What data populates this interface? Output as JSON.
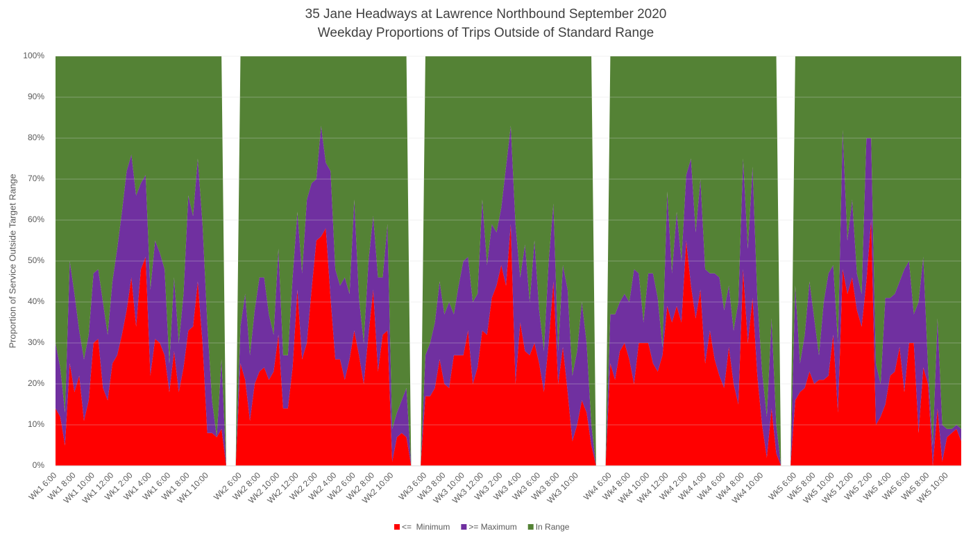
{
  "chart_data": {
    "type": "stacked_area",
    "title": "35 Jane Headways at Lawrence Northbound September 2020",
    "subtitle": "Weekday Proportions of Trips Outside of Standard Range",
    "y_label": "Proportion of Service Outside Target Range",
    "ylim": [
      0,
      100
    ],
    "yticks": [
      {
        "value": 0,
        "label": "0%"
      },
      {
        "value": 10,
        "label": "10%"
      },
      {
        "value": 20,
        "label": "20%"
      },
      {
        "value": 30,
        "label": "30%"
      },
      {
        "value": 40,
        "label": "40%"
      },
      {
        "value": 50,
        "label": "50%"
      },
      {
        "value": 60,
        "label": "60%"
      },
      {
        "value": 70,
        "label": "70%"
      },
      {
        "value": 80,
        "label": "80%"
      },
      {
        "value": 90,
        "label": "90%"
      },
      {
        "value": 100,
        "label": "100%"
      }
    ],
    "grid": true,
    "legend": "bottom",
    "categories": [
      "Wk1 6:00",
      null,
      null,
      null,
      "Wk1 8:00",
      null,
      null,
      null,
      "Wk1 10:00",
      null,
      null,
      null,
      "Wk1 12:00",
      null,
      null,
      null,
      "Wk1 2:00",
      null,
      null,
      null,
      "Wk1 4:00",
      null,
      null,
      null,
      "Wk1 6:00",
      null,
      null,
      null,
      "Wk1 8:00",
      null,
      null,
      null,
      "Wk1 10:00",
      null,
      null,
      null,
      null,
      null,
      null,
      "Wk2 6:00",
      null,
      null,
      null,
      "Wk2 8:00",
      null,
      null,
      null,
      "Wk2 10:00",
      null,
      null,
      null,
      "Wk2 12:00",
      null,
      null,
      null,
      "Wk2 2:00",
      null,
      null,
      null,
      "Wk2 4:00",
      null,
      null,
      null,
      "Wk2 6:00",
      null,
      null,
      null,
      "Wk2 8:00",
      null,
      null,
      null,
      "Wk2 10:00",
      null,
      null,
      null,
      null,
      null,
      null,
      "Wk3 6:00",
      null,
      null,
      null,
      "Wk3 8:00",
      null,
      null,
      null,
      "Wk3 10:00",
      null,
      null,
      null,
      "Wk3 12:00",
      null,
      null,
      null,
      "Wk3 2:00",
      null,
      null,
      null,
      "Wk3 4:00",
      null,
      null,
      null,
      "Wk3 6:00",
      null,
      null,
      null,
      "Wk3 8:00",
      null,
      null,
      null,
      "Wk3 10:00",
      null,
      null,
      null,
      null,
      null,
      null,
      "Wk4 6:00",
      null,
      null,
      null,
      "Wk4 8:00",
      null,
      null,
      null,
      "Wk4 10:00",
      null,
      null,
      null,
      "Wk4 12:00",
      null,
      null,
      null,
      "Wk4 2:00",
      null,
      null,
      null,
      "Wk4 4:00",
      null,
      null,
      null,
      "Wk4 6:00",
      null,
      null,
      null,
      "Wk4 8:00",
      null,
      null,
      null,
      "Wk4 10:00",
      null,
      null,
      null,
      null,
      null,
      null,
      "Wk5 6:00",
      null,
      null,
      null,
      "Wk5 8:00",
      null,
      null,
      null,
      "Wk5 10:00",
      null,
      null,
      null,
      "Wk5 12:00",
      null,
      null,
      null,
      "Wk5 2:00",
      null,
      null,
      null,
      "Wk5 4:00",
      null,
      null,
      null,
      "Wk5 6:00",
      null,
      null,
      null,
      "Wk5 8:00",
      null,
      null,
      null,
      "Wk5 10:00",
      null,
      null,
      null
    ],
    "series": [
      {
        "name": "<=  Minimum",
        "color": "#ff0000",
        "values": [
          14,
          12,
          5,
          25,
          18,
          22,
          11,
          16,
          30,
          31,
          19,
          16,
          25,
          27,
          32,
          38,
          46,
          34,
          48,
          51,
          22,
          31,
          30,
          27,
          18,
          28,
          18,
          24,
          33,
          34,
          45,
          30,
          8,
          8,
          7,
          9,
          0,
          0,
          0,
          25,
          21,
          11,
          20,
          23,
          24,
          21,
          23,
          32,
          14,
          14,
          24,
          43,
          26,
          30,
          43,
          55,
          56,
          58,
          41,
          26,
          26,
          21,
          26,
          33,
          27,
          20,
          32,
          43,
          23,
          32,
          33,
          1,
          7,
          8,
          7,
          0,
          0,
          0,
          17,
          17,
          19,
          26,
          20,
          19,
          27,
          27,
          27,
          33,
          20,
          24,
          33,
          32,
          41,
          44,
          49,
          44,
          59,
          20,
          35,
          28,
          27,
          30,
          25,
          18,
          30,
          45,
          20,
          29,
          18,
          6,
          10,
          16,
          13,
          5,
          0,
          0,
          0,
          25,
          21,
          28,
          30,
          26,
          20,
          30,
          30,
          30,
          25,
          23,
          27,
          39,
          35,
          39,
          35,
          55,
          44,
          36,
          43,
          25,
          33,
          26,
          22,
          19,
          29,
          20,
          15,
          48,
          30,
          41,
          22,
          10,
          2,
          14,
          3,
          0,
          0,
          0,
          16,
          18,
          19,
          23,
          20,
          21,
          21,
          22,
          32,
          13,
          48,
          42,
          46,
          38,
          34,
          45,
          60,
          10,
          12,
          15,
          22,
          23,
          29,
          18,
          30,
          30,
          8,
          24,
          20,
          0,
          14,
          1,
          7,
          8,
          9,
          6
        ]
      },
      {
        "name": ">= Maximum",
        "color": "#7030a0",
        "values": [
          16,
          12,
          8,
          25,
          24,
          11,
          15,
          16,
          17,
          17,
          21,
          16,
          20,
          26,
          30,
          34,
          30,
          32,
          21,
          20,
          21,
          24,
          22,
          21,
          7,
          18,
          12,
          18,
          33,
          27,
          30,
          29,
          27,
          8,
          0,
          17,
          0,
          0,
          0,
          9,
          21,
          16,
          18,
          23,
          22,
          16,
          9,
          21,
          13,
          13,
          22,
          19,
          21,
          35,
          26,
          15,
          27,
          16,
          31,
          22,
          18,
          25,
          16,
          32,
          14,
          10,
          18,
          18,
          23,
          14,
          26,
          8,
          6,
          8,
          12,
          0,
          0,
          0,
          10,
          13,
          16,
          19,
          17,
          21,
          10,
          17,
          23,
          18,
          20,
          18,
          32,
          17,
          18,
          13,
          14,
          29,
          24,
          39,
          11,
          26,
          13,
          25,
          13,
          10,
          20,
          19,
          8,
          20,
          25,
          16,
          18,
          24,
          17,
          5,
          0,
          0,
          0,
          12,
          16,
          12,
          12,
          14,
          28,
          17,
          5,
          17,
          22,
          18,
          2,
          28,
          12,
          23,
          15,
          16,
          31,
          21,
          27,
          23,
          14,
          21,
          24,
          19,
          15,
          13,
          25,
          27,
          23,
          32,
          19,
          13,
          10,
          22,
          7,
          0,
          0,
          0,
          28,
          7,
          13,
          22,
          16,
          6,
          19,
          25,
          17,
          17,
          34,
          13,
          19,
          9,
          8,
          35,
          20,
          15,
          8,
          26,
          19,
          19,
          16,
          30,
          20,
          7,
          32,
          27,
          4,
          5,
          22,
          9,
          2,
          1,
          1,
          3
        ]
      },
      {
        "name": "In Range",
        "color": "#548235",
        "values": [
          70,
          76,
          87,
          50,
          58,
          67,
          74,
          68,
          53,
          52,
          60,
          68,
          55,
          47,
          38,
          28,
          24,
          34,
          31,
          29,
          57,
          45,
          48,
          52,
          75,
          54,
          70,
          58,
          34,
          39,
          25,
          41,
          65,
          84,
          93,
          74,
          0,
          0,
          0,
          66,
          58,
          73,
          62,
          54,
          54,
          63,
          68,
          47,
          73,
          73,
          54,
          38,
          53,
          35,
          31,
          30,
          17,
          26,
          28,
          52,
          56,
          54,
          58,
          35,
          59,
          70,
          50,
          39,
          54,
          54,
          41,
          91,
          87,
          84,
          81,
          0,
          0,
          0,
          73,
          70,
          65,
          55,
          63,
          60,
          63,
          56,
          50,
          49,
          60,
          58,
          35,
          51,
          41,
          43,
          37,
          27,
          17,
          41,
          54,
          46,
          60,
          45,
          62,
          72,
          50,
          36,
          72,
          51,
          57,
          78,
          72,
          60,
          70,
          90,
          0,
          0,
          0,
          63,
          63,
          60,
          58,
          60,
          52,
          53,
          65,
          53,
          53,
          59,
          71,
          33,
          53,
          38,
          50,
          29,
          25,
          43,
          30,
          52,
          53,
          53,
          54,
          62,
          56,
          67,
          60,
          25,
          47,
          27,
          59,
          77,
          88,
          64,
          90,
          0,
          0,
          0,
          56,
          75,
          68,
          55,
          64,
          73,
          60,
          53,
          51,
          70,
          18,
          45,
          35,
          53,
          58,
          20,
          20,
          75,
          80,
          59,
          59,
          58,
          55,
          52,
          50,
          63,
          60,
          49,
          76,
          95,
          64,
          90,
          91,
          91,
          90,
          91
        ]
      }
    ]
  }
}
